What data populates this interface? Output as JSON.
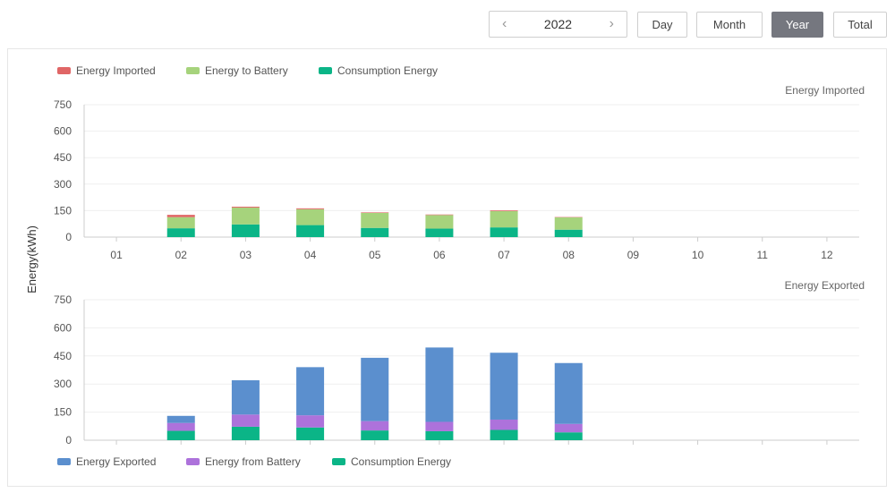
{
  "toolbar": {
    "year": "2022",
    "prev_icon": "chevron-left-icon",
    "next_icon": "chevron-right-icon",
    "buttons": [
      "Day",
      "Month",
      "Year",
      "Total"
    ],
    "active": "Year"
  },
  "colors": {
    "energy_imported": "#e06666",
    "energy_to_battery": "#a6d37c",
    "consumption": "#0bb587",
    "energy_exported": "#5b8fce",
    "energy_from_battery": "#ad72db",
    "grid": "#efefef",
    "axis": "#cccccc"
  },
  "chart_data": [
    {
      "type": "bar",
      "stacked": true,
      "title": "Energy Imported",
      "ylabel": "Energy(kWh)",
      "categories": [
        "01",
        "02",
        "03",
        "04",
        "05",
        "06",
        "07",
        "08",
        "09",
        "10",
        "11",
        "12"
      ],
      "yticks": [
        0,
        150,
        300,
        450,
        600,
        750
      ],
      "ylim": [
        0,
        750
      ],
      "legend_position": "top-left",
      "series": [
        {
          "name": "Consumption Energy",
          "values": [
            0,
            50,
            72,
            68,
            52,
            48,
            55,
            42,
            0,
            0,
            0,
            0
          ]
        },
        {
          "name": "Energy to Battery",
          "values": [
            0,
            63,
            95,
            90,
            85,
            77,
            92,
            70,
            0,
            0,
            0,
            0
          ]
        },
        {
          "name": "Energy Imported",
          "values": [
            0,
            13,
            5,
            5,
            3,
            3,
            4,
            2,
            0,
            0,
            0,
            0
          ]
        }
      ]
    },
    {
      "type": "bar",
      "stacked": true,
      "title": "Energy Exported",
      "categories": [
        "01",
        "02",
        "03",
        "04",
        "05",
        "06",
        "07",
        "08",
        "09",
        "10",
        "11",
        "12"
      ],
      "yticks": [
        0,
        150,
        300,
        450,
        600,
        750
      ],
      "ylim": [
        0,
        750
      ],
      "legend_position": "bottom-left",
      "series": [
        {
          "name": "Consumption Energy",
          "values": [
            0,
            50,
            72,
            68,
            52,
            48,
            55,
            42,
            0,
            0,
            0,
            0
          ]
        },
        {
          "name": "Energy from Battery",
          "values": [
            0,
            42,
            65,
            65,
            50,
            50,
            55,
            45,
            0,
            0,
            0,
            0
          ]
        },
        {
          "name": "Energy Exported",
          "values": [
            0,
            38,
            183,
            257,
            338,
            397,
            357,
            325,
            0,
            0,
            0,
            0
          ]
        }
      ]
    }
  ]
}
